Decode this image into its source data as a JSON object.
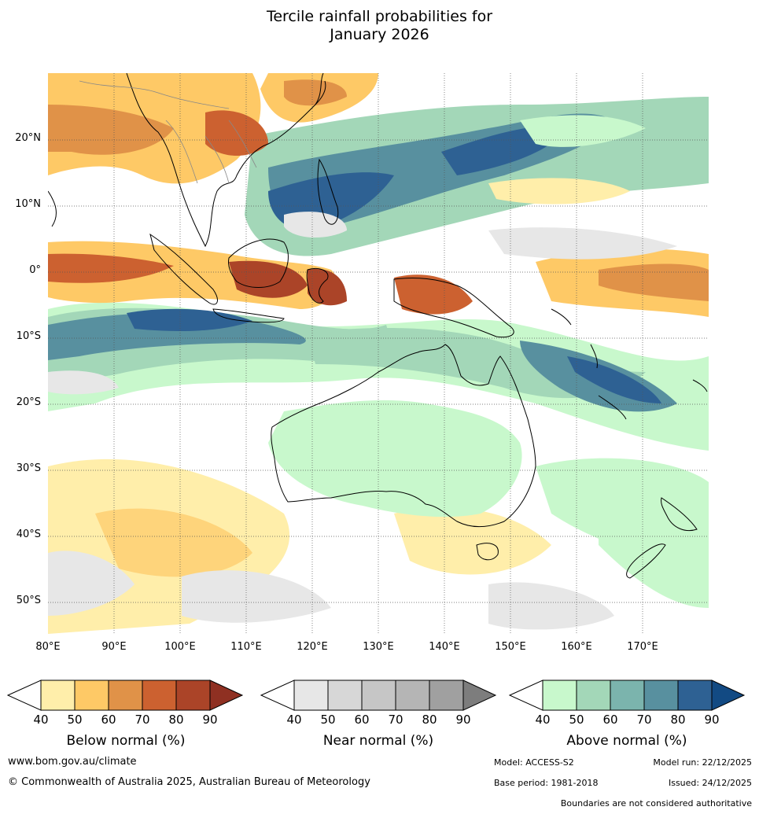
{
  "title": {
    "line1": "Tercile rainfall probabilities for",
    "line2": "January 2026"
  },
  "map": {
    "latitude_labels": [
      "20°N",
      "10°N",
      "0°",
      "10°S",
      "20°S",
      "30°S",
      "40°S",
      "50°S"
    ],
    "longitude_labels": [
      "80°E",
      "90°E",
      "100°E",
      "110°E",
      "120°E",
      "130°E",
      "140°E",
      "150°E",
      "160°E",
      "170°E"
    ]
  },
  "legend": {
    "below": {
      "label": "Below normal (%)",
      "ticks": [
        "40",
        "50",
        "60",
        "70",
        "80",
        "90"
      ],
      "colors": [
        "#ffeeaa",
        "#fec966",
        "#e09248",
        "#cc6130",
        "#ab4428",
        "#8f3022"
      ]
    },
    "near": {
      "label": "Near normal (%)",
      "ticks": [
        "40",
        "50",
        "60",
        "70",
        "80",
        "90"
      ],
      "colors": [
        "#e7e7e7",
        "#d7d7d7",
        "#c6c6c6",
        "#b5b5b5",
        "#a0a0a0",
        "#7d7d7d"
      ]
    },
    "above": {
      "label": "Above normal (%)",
      "ticks": [
        "40",
        "50",
        "60",
        "70",
        "80",
        "90"
      ],
      "colors": [
        "#c8f8cc",
        "#a3d7b8",
        "#7bb4ad",
        "#58909f",
        "#2e6193",
        "#124a83"
      ]
    }
  },
  "footer": {
    "website": "www.bom.gov.au/climate",
    "copyright": "© Commonwealth of Australia 2025, Australian Bureau of Meteorology",
    "model": "Model: ACCESS-S2",
    "model_run": "Model run: 22/12/2025",
    "base_period": "Base period: 1981-2018",
    "issued": "Issued: 24/12/2025",
    "disclaimer": "Boundaries are not considered authoritative"
  }
}
